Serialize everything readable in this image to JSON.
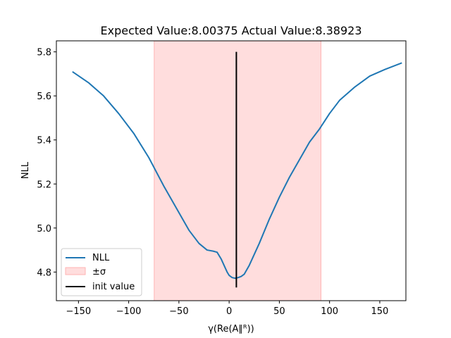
{
  "chart_data": {
    "type": "line",
    "title": "Expected Value:8.00375 Actual Value:8.38923",
    "xlabel": "γ(Re(A∥ᴿ))",
    "ylabel": "NLL",
    "xlim": [
      -172,
      176
    ],
    "ylim": [
      4.67,
      5.85
    ],
    "xticks": [
      -150,
      -100,
      -50,
      0,
      50,
      100,
      150
    ],
    "yticks": [
      4.8,
      5.0,
      5.2,
      5.4,
      5.6,
      5.8
    ],
    "grid": false,
    "legend_position": "lower-left",
    "series": [
      {
        "name": "NLL",
        "color": "#1f77b4",
        "x": [
          -156,
          -140,
          -125,
          -110,
          -95,
          -80,
          -65,
          -50,
          -40,
          -30,
          -22,
          -16,
          -12,
          -8,
          -5,
          -2,
          0,
          3,
          6,
          9,
          12,
          15,
          20,
          30,
          40,
          50,
          60,
          70,
          80,
          90,
          100,
          110,
          125,
          140,
          155,
          172
        ],
        "y": [
          5.71,
          5.66,
          5.6,
          5.52,
          5.43,
          5.32,
          5.19,
          5.07,
          4.99,
          4.93,
          4.9,
          4.895,
          4.89,
          4.86,
          4.83,
          4.8,
          4.785,
          4.775,
          4.772,
          4.775,
          4.78,
          4.79,
          4.83,
          4.93,
          5.04,
          5.14,
          5.23,
          5.31,
          5.39,
          5.45,
          5.52,
          5.58,
          5.64,
          5.69,
          5.72,
          5.75
        ]
      }
    ],
    "band": {
      "name": "±σ",
      "x0": -74.6,
      "x1": 91.4,
      "color": "#ffdddd",
      "edge": "#ffb3b3"
    },
    "vline": {
      "name": "init value",
      "x": 7.2,
      "y0": 4.73,
      "y1": 5.8,
      "color": "#000000"
    }
  }
}
